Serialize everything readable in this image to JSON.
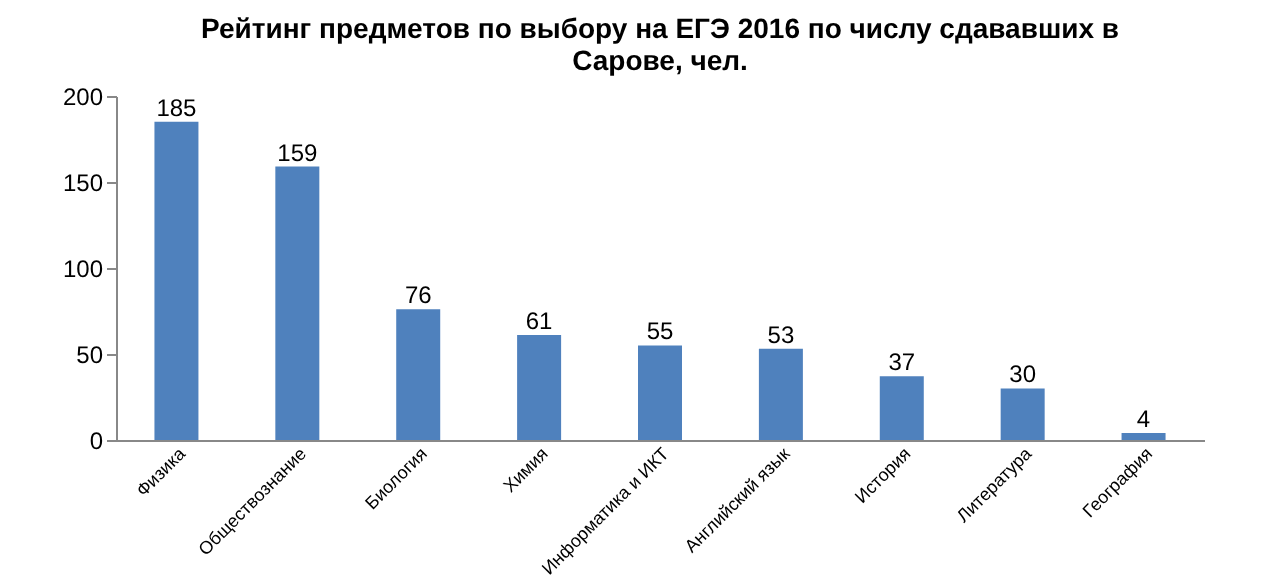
{
  "chart_data": {
    "type": "bar",
    "title": "Рейтинг предметов по выбору на ЕГЭ 2016 по числу сдававших в Сарове, чел.",
    "categories": [
      "Физика",
      "Обществознание",
      "Биология",
      "Химия",
      "Информатика и ИКТ",
      "Английский язык",
      "История",
      "Литература",
      "География"
    ],
    "values": [
      185,
      159,
      76,
      61,
      55,
      53,
      37,
      30,
      4
    ],
    "color": "#4f81bd",
    "ylim": [
      0,
      200
    ],
    "yticks": [
      0,
      50,
      100,
      150,
      200
    ],
    "grid": false,
    "data_labels": true
  }
}
